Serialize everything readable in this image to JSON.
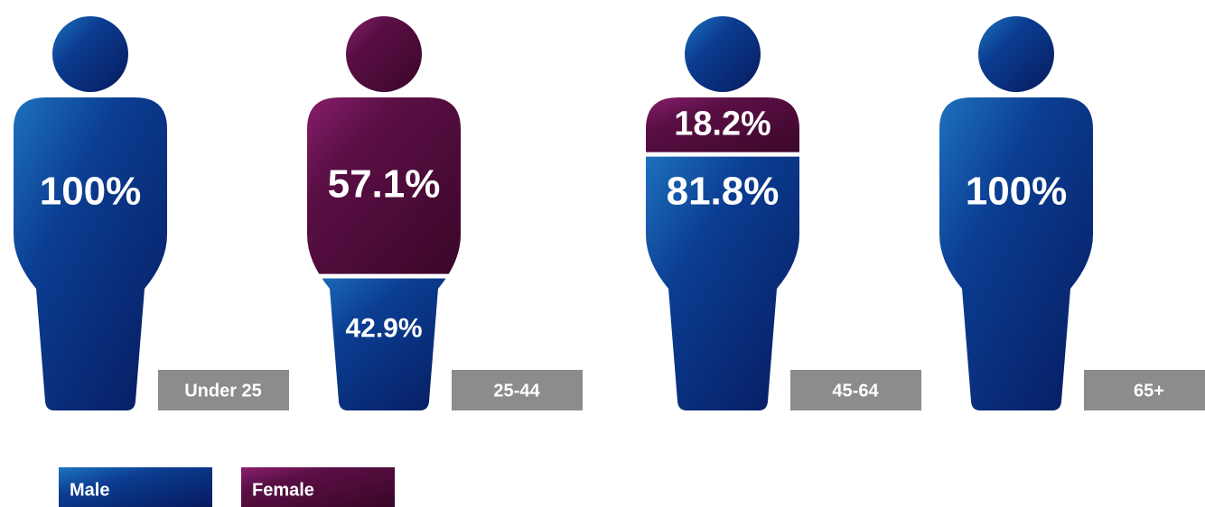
{
  "chart_data": {
    "type": "pictogram",
    "categories": [
      "Under 25",
      "25-44",
      "45-64",
      "65+"
    ],
    "series": [
      {
        "name": "Female",
        "color": "#8a1f6e",
        "values": [
          0,
          57.1,
          18.2,
          0
        ],
        "value_labels": [
          null,
          "57.1%",
          "18.2%",
          null
        ]
      },
      {
        "name": "Male",
        "color": "#0a3a8f",
        "values": [
          100,
          42.9,
          81.8,
          100
        ],
        "value_labels": [
          "100%",
          "42.9%",
          "81.8%",
          "100%"
        ]
      }
    ],
    "legend": "bottom-left"
  }
}
